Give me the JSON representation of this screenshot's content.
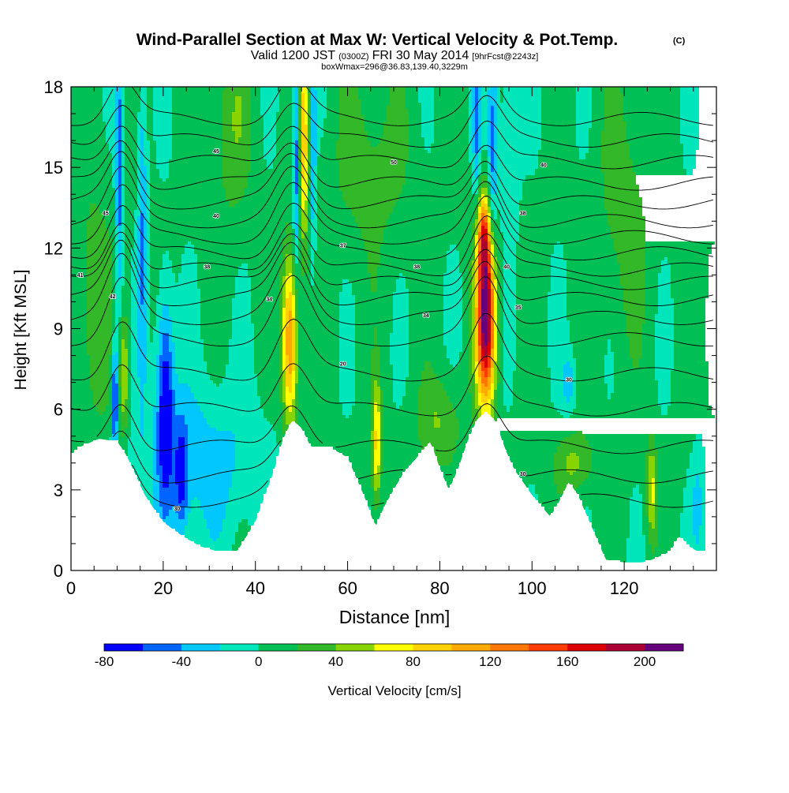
{
  "chart_data": {
    "type": "heatmap",
    "title": "Wind-Parallel Section at Max W: Vertical Velocity & Pot.Temp.",
    "title_tag": "(C)",
    "subtitle_parts": [
      "Valid 1200 JST",
      "(0300Z)",
      "FRI 30 May 2014",
      "[9hrFcst@2243z]"
    ],
    "subtitle3": "boxWmax=296@36.83,139.40,3229m",
    "xlabel": "Distance [nm]",
    "ylabel": "Height [Kft MSL]",
    "xlim": [
      0,
      140
    ],
    "ylim": [
      0,
      18
    ],
    "x_ticks": [
      "0",
      "20",
      "40",
      "60",
      "80",
      "100",
      "120"
    ],
    "y_ticks": [
      "0",
      "3",
      "6",
      "9",
      "12",
      "15",
      "18"
    ],
    "grid": false,
    "background_value": 5,
    "colorbar": {
      "label": "Vertical Velocity [cm/s]",
      "placement": "bottom",
      "ticks": [
        "-80",
        "-40",
        "0",
        "40",
        "80",
        "120",
        "160",
        "200"
      ],
      "levels": [
        -80,
        -60,
        -40,
        -20,
        0,
        20,
        40,
        60,
        80,
        100,
        120,
        140,
        160,
        180,
        200,
        220
      ],
      "colors": [
        "#0000ff",
        "#0064ff",
        "#00c8ff",
        "#00e6bb",
        "#00c055",
        "#33b82a",
        "#88d400",
        "#ffff00",
        "#ffd200",
        "#ffaa00",
        "#ff7700",
        "#ff3c00",
        "#dd0000",
        "#aa0033",
        "#66007a"
      ]
    },
    "terrain": {
      "x": [
        0,
        2,
        6,
        10,
        12,
        16,
        20,
        24,
        28,
        32,
        36,
        40,
        44,
        46,
        48,
        50,
        52,
        56,
        60,
        64,
        66,
        68,
        72,
        76,
        78,
        80,
        82,
        84,
        86,
        88,
        90,
        92,
        94,
        96,
        100,
        104,
        106,
        108,
        110,
        112,
        114,
        116,
        120,
        124,
        126,
        130,
        132,
        134,
        136,
        140
      ],
      "height": [
        4.3,
        4.6,
        4.9,
        4.8,
        4.3,
        2.8,
        1.8,
        1.3,
        0.9,
        0.7,
        0.7,
        1.8,
        3.7,
        4.9,
        5.6,
        5.3,
        4.6,
        4.6,
        4.2,
        2.6,
        1.6,
        2.4,
        3.6,
        4.4,
        4.8,
        3.8,
        3.0,
        3.8,
        4.8,
        5.6,
        5.9,
        5.6,
        4.6,
        3.8,
        2.8,
        2.0,
        2.6,
        3.3,
        2.8,
        2.0,
        1.2,
        0.4,
        0.3,
        0.3,
        0.4,
        0.7,
        1.3,
        0.9,
        0.7,
        0.7
      ]
    },
    "velocity_features": [
      {
        "x": 47.5,
        "y": 8.5,
        "sx": 1.2,
        "sy": 2.3,
        "value": 120
      },
      {
        "x": 50.5,
        "y": 16.0,
        "sx": 0.8,
        "sy": 2.8,
        "value": 90
      },
      {
        "x": 90.0,
        "y": 9.5,
        "sx": 1.5,
        "sy": 2.3,
        "value": 210
      },
      {
        "x": 89.5,
        "y": 12.5,
        "sx": 0.9,
        "sy": 1.0,
        "value": 90
      },
      {
        "x": 66.3,
        "y": 4.7,
        "sx": 0.7,
        "sy": 1.6,
        "value": 80
      },
      {
        "x": 11.5,
        "y": 7.2,
        "sx": 0.7,
        "sy": 1.6,
        "value": 60
      },
      {
        "x": 126.0,
        "y": 3.0,
        "sx": 0.8,
        "sy": 1.3,
        "value": 60
      },
      {
        "x": 109.0,
        "y": 4.0,
        "sx": 3.0,
        "sy": 0.8,
        "value": 40
      },
      {
        "x": 80.0,
        "y": 5.5,
        "sx": 3.5,
        "sy": 1.2,
        "value": 35
      },
      {
        "x": 20.5,
        "y": 6.5,
        "sx": 1.3,
        "sy": 2.7,
        "value": -80
      },
      {
        "x": 9.5,
        "y": 6.5,
        "sx": 0.5,
        "sy": 1.6,
        "value": -80
      },
      {
        "x": 10.5,
        "y": 14.5,
        "sx": 0.6,
        "sy": 4.0,
        "value": -55
      },
      {
        "x": 15.5,
        "y": 13.0,
        "sx": 0.7,
        "sy": 4.5,
        "value": -45
      },
      {
        "x": 28.0,
        "y": 4.0,
        "sx": 10.0,
        "sy": 2.2,
        "value": -35
      },
      {
        "x": 24.0,
        "y": 3.5,
        "sx": 1.0,
        "sy": 1.5,
        "value": -55
      },
      {
        "x": 49.0,
        "y": 15.5,
        "sx": 0.6,
        "sy": 3.0,
        "value": -70
      },
      {
        "x": 52.5,
        "y": 15.5,
        "sx": 0.5,
        "sy": 3.0,
        "value": -45
      },
      {
        "x": 91.5,
        "y": 15.5,
        "sx": 0.7,
        "sy": 2.8,
        "value": -55
      },
      {
        "x": 88.0,
        "y": 16.5,
        "sx": 0.6,
        "sy": 2.0,
        "value": -45
      },
      {
        "x": 95.0,
        "y": 16.0,
        "sx": 1.5,
        "sy": 2.5,
        "value": -30
      },
      {
        "x": 35.0,
        "y": 16.5,
        "sx": 3.0,
        "sy": 2.5,
        "value": 30
      },
      {
        "x": 65.0,
        "y": 15.0,
        "sx": 6.0,
        "sy": 2.5,
        "value": 25
      },
      {
        "x": 5.0,
        "y": 9.5,
        "sx": 3.0,
        "sy": 3.5,
        "value": 30
      },
      {
        "x": 120.0,
        "y": 13.5,
        "sx": 4.0,
        "sy": 3.5,
        "value": 25
      },
      {
        "x": 108.0,
        "y": 7.0,
        "sx": 1.0,
        "sy": 0.8,
        "value": -35
      },
      {
        "x": 136.0,
        "y": 2.5,
        "sx": 1.0,
        "sy": 1.5,
        "value": -30
      }
    ],
    "isentropes": {
      "thetas": [
        "14",
        "15",
        "16",
        "17",
        "18",
        "19",
        "20",
        "21",
        "22",
        "23",
        "24",
        "25",
        "26",
        "27",
        "28",
        "29",
        "30",
        "31"
      ],
      "base_heights": [
        2.6,
        3.5,
        4.6,
        6.0,
        7.3,
        8.6,
        9.4,
        10.1,
        10.7,
        11.2,
        11.8,
        12.4,
        13.0,
        13.7,
        14.4,
        15.2,
        16.0,
        16.8
      ],
      "labeled_points": [
        {
          "text": "30",
          "x": 23,
          "y": 2.3
        },
        {
          "text": "20",
          "x": 59,
          "y": 7.7
        },
        {
          "text": "30",
          "x": 108,
          "y": 7.1
        },
        {
          "text": "30",
          "x": 98,
          "y": 3.6
        },
        {
          "text": "41",
          "x": 2,
          "y": 11.0
        },
        {
          "text": "42",
          "x": 9,
          "y": 10.2
        },
        {
          "text": "45",
          "x": 7.5,
          "y": 13.3
        },
        {
          "text": "38",
          "x": 29.5,
          "y": 11.3
        },
        {
          "text": "40",
          "x": 31.5,
          "y": 13.2
        },
        {
          "text": "45",
          "x": 31.5,
          "y": 15.6
        },
        {
          "text": "34",
          "x": 43,
          "y": 10.1
        },
        {
          "text": "37",
          "x": 59,
          "y": 12.1
        },
        {
          "text": "50",
          "x": 70,
          "y": 15.2
        },
        {
          "text": "38",
          "x": 75,
          "y": 11.3
        },
        {
          "text": "34",
          "x": 77,
          "y": 9.5
        },
        {
          "text": "40",
          "x": 94.5,
          "y": 11.3
        },
        {
          "text": "38",
          "x": 98,
          "y": 13.3
        },
        {
          "text": "40",
          "x": 102.5,
          "y": 15.1
        },
        {
          "text": "35",
          "x": 97,
          "y": 9.8
        }
      ]
    }
  }
}
